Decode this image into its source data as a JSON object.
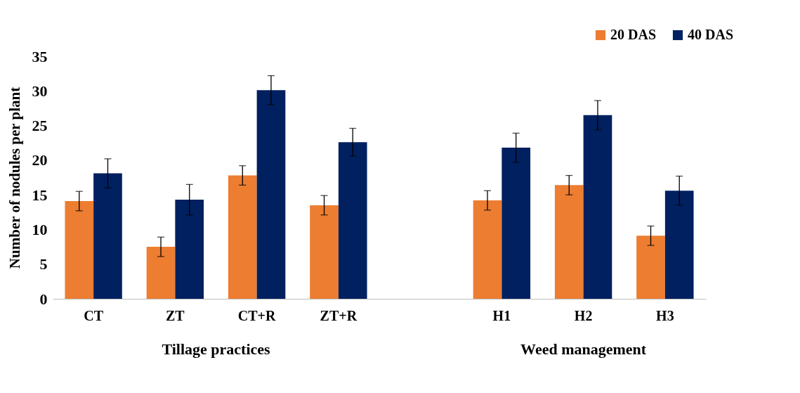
{
  "chart_data": {
    "type": "bar",
    "categories": [
      "CT",
      "ZT",
      "CT+R",
      "ZT+R",
      null,
      "H1",
      "H2",
      "H3"
    ],
    "series": [
      {
        "name": "20 DAS",
        "color": "#ed7d31",
        "values": [
          14.1,
          7.5,
          17.8,
          13.5,
          null,
          14.2,
          16.4,
          9.1
        ],
        "errors": [
          1.4,
          1.4,
          1.4,
          1.4,
          null,
          1.4,
          1.4,
          1.4
        ]
      },
      {
        "name": "40 DAS",
        "color": "#002060",
        "values": [
          18.1,
          14.3,
          30.1,
          22.6,
          null,
          21.8,
          26.5,
          15.6
        ],
        "errors": [
          2.1,
          2.2,
          2.1,
          2.0,
          null,
          2.1,
          2.1,
          2.1
        ]
      }
    ],
    "ylabel": "Number of nodules per plant",
    "ylim": [
      0,
      35
    ],
    "yticks": [
      0,
      5,
      10,
      15,
      20,
      25,
      30,
      35
    ],
    "annotations": [
      "Tillage practices",
      "Weed management"
    ],
    "legend": "top right",
    "grid": false
  }
}
